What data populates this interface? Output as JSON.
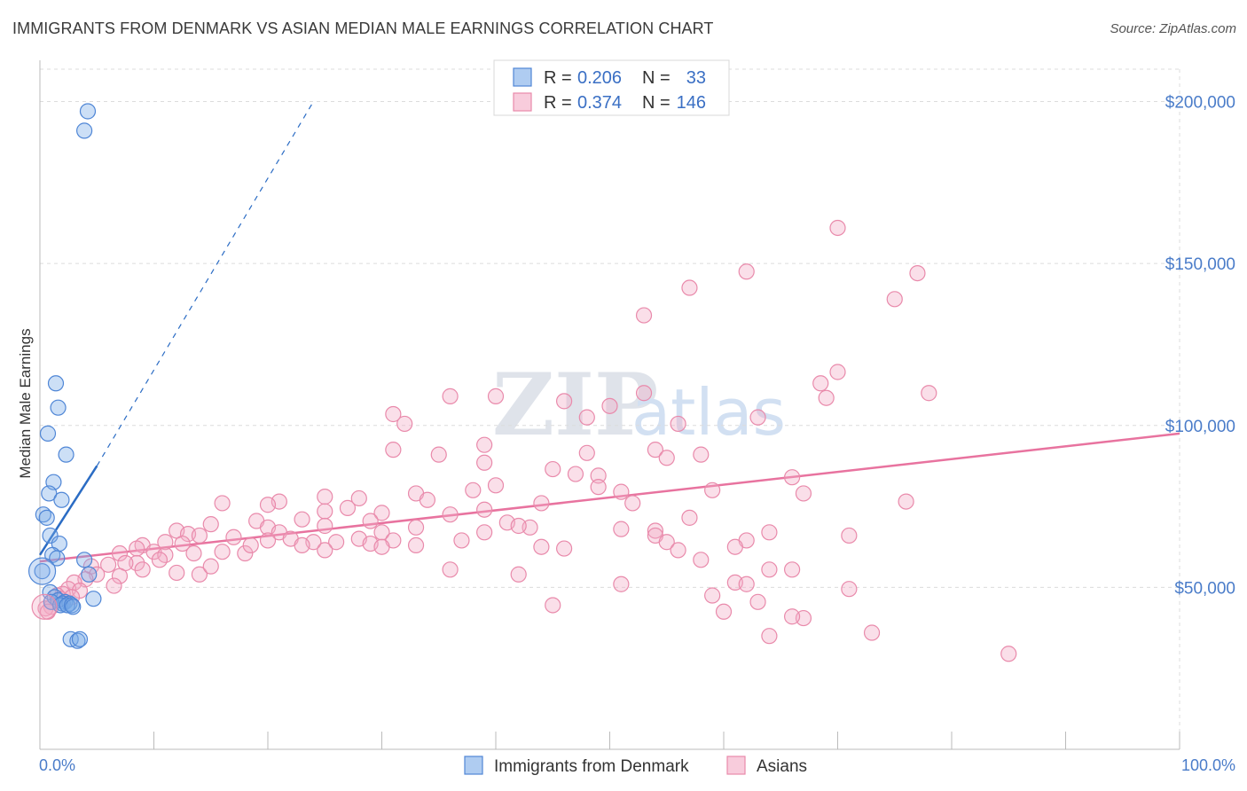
{
  "title": "IMMIGRANTS FROM DENMARK VS ASIAN MEDIAN MALE EARNINGS CORRELATION CHART",
  "source": "Source: ZipAtlas.com",
  "watermark": {
    "zip": "ZIP",
    "atlas": "atlas"
  },
  "chart_data": {
    "type": "scatter",
    "title": "IMMIGRANTS FROM DENMARK VS ASIAN MEDIAN MALE EARNINGS CORRELATION CHART",
    "xlabel": "",
    "ylabel": "Median Male Earnings",
    "xlim": [
      0,
      100
    ],
    "ylim": [
      0,
      210000
    ],
    "x_tick_labels": [
      "0.0%",
      "100.0%"
    ],
    "y_ticks": [
      50000,
      100000,
      150000,
      200000
    ],
    "y_tick_labels": [
      "$50,000",
      "$100,000",
      "$150,000",
      "$200,000"
    ],
    "grid": true,
    "legend_position": "top-center",
    "legend": [
      {
        "r_label": "R =",
        "r": "0.206",
        "n_label": "N =",
        "n": "33"
      },
      {
        "r_label": "R =",
        "r": "0.374",
        "n_label": "N =",
        "n": "146"
      }
    ],
    "series": [
      {
        "name": "Immigrants from Denmark",
        "color": "#7aaae8",
        "stroke": "#4f86d6",
        "trend": {
          "x0": 0,
          "y0": 60000,
          "x1": 5,
          "y1": 87500,
          "dash_to": [
            24,
            200000
          ],
          "color": "#2b6cc4"
        },
        "points": [
          [
            4.2,
            197000
          ],
          [
            3.9,
            191000
          ],
          [
            1.4,
            113000
          ],
          [
            1.6,
            105500
          ],
          [
            0.7,
            97500
          ],
          [
            2.3,
            91000
          ],
          [
            1.2,
            82500
          ],
          [
            0.8,
            79000
          ],
          [
            1.9,
            77000
          ],
          [
            0.3,
            72500
          ],
          [
            0.6,
            71500
          ],
          [
            0.9,
            66000
          ],
          [
            1.7,
            63500
          ],
          [
            1.1,
            60000
          ],
          [
            1.5,
            59000
          ],
          [
            3.9,
            58500
          ],
          [
            0.2,
            55000
          ],
          [
            4.3,
            54000
          ],
          [
            0.9,
            48500
          ],
          [
            1.3,
            47000
          ],
          [
            4.7,
            46500
          ],
          [
            1.6,
            46000
          ],
          [
            2.2,
            45500
          ],
          [
            1.0,
            45500
          ],
          [
            2.0,
            45000
          ],
          [
            2.6,
            45000
          ],
          [
            1.8,
            44500
          ],
          [
            2.4,
            44500
          ],
          [
            2.8,
            44500
          ],
          [
            2.9,
            44000
          ],
          [
            2.7,
            34000
          ],
          [
            3.3,
            33500
          ],
          [
            3.5,
            34000
          ]
        ]
      },
      {
        "name": "Asians",
        "color": "#f3aac4",
        "stroke": "#e98aab",
        "trend": {
          "x0": 0,
          "y0": 58000,
          "x1": 100,
          "y1": 97500,
          "color": "#e8739f"
        },
        "points": [
          [
            70,
            161000
          ],
          [
            62,
            147500
          ],
          [
            77,
            147000
          ],
          [
            57,
            142500
          ],
          [
            75,
            139000
          ],
          [
            53,
            134000
          ],
          [
            70,
            116500
          ],
          [
            68.5,
            113000
          ],
          [
            53,
            110000
          ],
          [
            78,
            110000
          ],
          [
            36,
            109000
          ],
          [
            40,
            109000
          ],
          [
            69,
            108500
          ],
          [
            46,
            107500
          ],
          [
            50,
            106000
          ],
          [
            31,
            103500
          ],
          [
            48,
            102500
          ],
          [
            63,
            102500
          ],
          [
            32,
            100500
          ],
          [
            56,
            100500
          ],
          [
            39,
            94000
          ],
          [
            31,
            92500
          ],
          [
            54,
            92500
          ],
          [
            48,
            91500
          ],
          [
            35,
            91000
          ],
          [
            58,
            91000
          ],
          [
            55,
            90000
          ],
          [
            39,
            88500
          ],
          [
            45,
            86500
          ],
          [
            47,
            85000
          ],
          [
            49,
            84500
          ],
          [
            66,
            84000
          ],
          [
            40,
            81500
          ],
          [
            49,
            81000
          ],
          [
            38,
            80000
          ],
          [
            59,
            80000
          ],
          [
            33,
            79000
          ],
          [
            51,
            79500
          ],
          [
            67,
            79000
          ],
          [
            25,
            78000
          ],
          [
            28,
            77500
          ],
          [
            34,
            77000
          ],
          [
            21,
            76500
          ],
          [
            44,
            76000
          ],
          [
            52,
            76000
          ],
          [
            76,
            76500
          ],
          [
            20,
            75500
          ],
          [
            16,
            76000
          ],
          [
            27,
            74500
          ],
          [
            39,
            74000
          ],
          [
            25,
            73500
          ],
          [
            36,
            72500
          ],
          [
            30,
            73000
          ],
          [
            23,
            71000
          ],
          [
            19,
            70500
          ],
          [
            29,
            70500
          ],
          [
            41,
            70000
          ],
          [
            57,
            71500
          ],
          [
            15,
            69500
          ],
          [
            25,
            69000
          ],
          [
            20,
            68500
          ],
          [
            43,
            68500
          ],
          [
            33,
            68500
          ],
          [
            51,
            68000
          ],
          [
            42,
            69000
          ],
          [
            12,
            67500
          ],
          [
            54,
            67500
          ],
          [
            21,
            67000
          ],
          [
            30,
            67000
          ],
          [
            39,
            67000
          ],
          [
            54,
            66000
          ],
          [
            64,
            67000
          ],
          [
            13,
            66500
          ],
          [
            14,
            66000
          ],
          [
            17,
            65500
          ],
          [
            22,
            65000
          ],
          [
            28,
            65000
          ],
          [
            31,
            64500
          ],
          [
            20,
            64500
          ],
          [
            37,
            64500
          ],
          [
            24,
            64000
          ],
          [
            26,
            64000
          ],
          [
            29,
            63500
          ],
          [
            55,
            64000
          ],
          [
            62,
            64500
          ],
          [
            71,
            66000
          ],
          [
            11,
            64000
          ],
          [
            12.5,
            63500
          ],
          [
            9,
            63000
          ],
          [
            8.5,
            62000
          ],
          [
            23,
            63000
          ],
          [
            30,
            62500
          ],
          [
            33,
            63000
          ],
          [
            44,
            62500
          ],
          [
            46,
            62000
          ],
          [
            61,
            62500
          ],
          [
            10,
            61000
          ],
          [
            16,
            61000
          ],
          [
            25,
            61500
          ],
          [
            56,
            61500
          ],
          [
            7,
            60500
          ],
          [
            11,
            60000
          ],
          [
            18,
            60500
          ],
          [
            58,
            58500
          ],
          [
            8.5,
            57500
          ],
          [
            6,
            57000
          ],
          [
            7.5,
            57500
          ],
          [
            4.5,
            56500
          ],
          [
            9,
            55500
          ],
          [
            12,
            54500
          ],
          [
            14,
            54000
          ],
          [
            36,
            55500
          ],
          [
            42,
            54000
          ],
          [
            64,
            55500
          ],
          [
            66,
            55500
          ],
          [
            5,
            54000
          ],
          [
            7,
            53500
          ],
          [
            4,
            52500
          ],
          [
            3,
            51500
          ],
          [
            51,
            51000
          ],
          [
            61,
            51500
          ],
          [
            62,
            51000
          ],
          [
            2.5,
            49500
          ],
          [
            3.5,
            49000
          ],
          [
            2,
            48000
          ],
          [
            1.5,
            47500
          ],
          [
            59,
            47500
          ],
          [
            71,
            49500
          ],
          [
            63,
            45500
          ],
          [
            45,
            44500
          ],
          [
            1,
            44000
          ],
          [
            0.5,
            43500
          ],
          [
            0.7,
            42500
          ],
          [
            60,
            42500
          ],
          [
            67,
            40500
          ],
          [
            66,
            41000
          ],
          [
            64,
            35000
          ],
          [
            73,
            36000
          ],
          [
            85,
            29500
          ],
          [
            1.8,
            46500
          ],
          [
            2.8,
            47000
          ],
          [
            6.5,
            50500
          ],
          [
            10.5,
            58500
          ],
          [
            13.5,
            60500
          ],
          [
            15,
            56500
          ],
          [
            18.5,
            63000
          ]
        ]
      }
    ]
  }
}
